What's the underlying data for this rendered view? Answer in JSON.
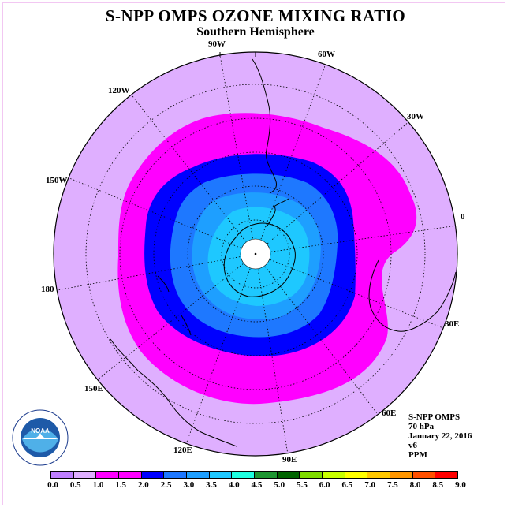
{
  "title": "S-NPP OMPS OZONE MIXING RATIO",
  "subtitle": "Southern Hemisphere",
  "info": {
    "product": "S-NPP OMPS",
    "level": "70 hPa",
    "date": "January 22, 2016",
    "version": "v6",
    "units": "PPM"
  },
  "longitude_labels": {
    "lon_90w": "90W",
    "lon_60w": "60W",
    "lon_30w": "30W",
    "lon_0": "0",
    "lon_30e": "30E",
    "lon_60e": "60E",
    "lon_90e": "90E",
    "lon_120e": "120E",
    "lon_150e": "150E",
    "lon_180": "180",
    "lon_150w": "150W",
    "lon_120w": "120W"
  },
  "colorbar": {
    "ticks": [
      "0.0",
      "0.5",
      "1.0",
      "1.5",
      "2.0",
      "2.5",
      "3.0",
      "3.5",
      "4.0",
      "4.5",
      "5.0",
      "5.5",
      "6.0",
      "6.5",
      "7.0",
      "7.5",
      "8.0",
      "8.5",
      "9.0"
    ],
    "colors": [
      "#bf7fff",
      "#dfafff",
      "#ff00ff",
      "#ff00ff",
      "#0000ff",
      "#1e78ff",
      "#1e9fff",
      "#1ec8ff",
      "#1effe1",
      "#1e9632",
      "#006400",
      "#7fdc00",
      "#c8ff00",
      "#ffff00",
      "#ffc800",
      "#ff9600",
      "#ff5000",
      "#ff0000",
      "#8c5a3c"
    ]
  },
  "logo": {
    "text": "NOAA",
    "ring_text": "NATIONAL OCEANIC AND ATMOSPHERIC ADMINISTRATION · U.S. DEPARTMENT OF COMMERCE"
  },
  "colors": {
    "background_ppm": "#dfafff",
    "band_1_5": "#ff00ff",
    "band_2_0": "#0000ff",
    "band_2_5": "#1e78ff",
    "band_3_0": "#1e9fff",
    "band_3_5": "#1ec8ff"
  }
}
